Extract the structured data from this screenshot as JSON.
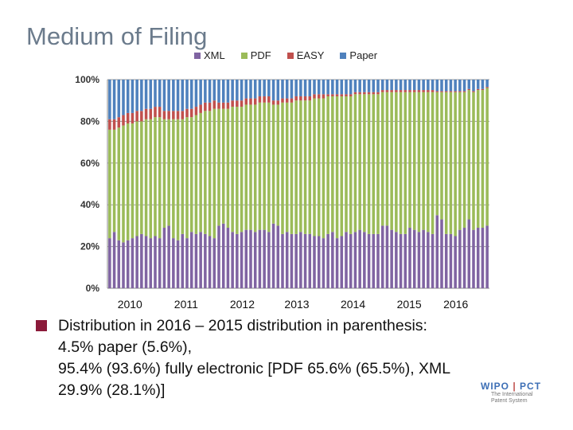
{
  "page": {
    "title": "Medium of Filing"
  },
  "legend": [
    {
      "label": "XML",
      "color": "#8064a2"
    },
    {
      "label": "PDF",
      "color": "#9bbb59"
    },
    {
      "label": "EASY",
      "color": "#c0504d"
    },
    {
      "label": "Paper",
      "color": "#4f81bd"
    }
  ],
  "chart_data": {
    "type": "bar",
    "stacked": true,
    "title": "Medium of Filing",
    "y_tick_labels": [
      "0%",
      "20%",
      "40%",
      "60%",
      "80%",
      "100%"
    ],
    "ylim": [
      0,
      100
    ],
    "year_labels": [
      "2010",
      "2011",
      "2012",
      "2013",
      "2014",
      "2015",
      "2016"
    ],
    "bars_per_year": 12,
    "series_order": [
      "XML",
      "PDF",
      "EASY",
      "Paper"
    ],
    "series": [
      {
        "name": "XML",
        "values": [
          24,
          27,
          23,
          22,
          23,
          24,
          25,
          26,
          25,
          24,
          25,
          24,
          29,
          30,
          24,
          23,
          26,
          24,
          27,
          26,
          27,
          26,
          25,
          24,
          30,
          31,
          29,
          27,
          26,
          27,
          28,
          28,
          27,
          28,
          28,
          27,
          31,
          30,
          26,
          27,
          26,
          26,
          27,
          26,
          26,
          25,
          25,
          24,
          26,
          27,
          24,
          25,
          27,
          26,
          27,
          28,
          27,
          26,
          26,
          26,
          30,
          30,
          28,
          27,
          26,
          26,
          29,
          28,
          27,
          28,
          27,
          26,
          35,
          33,
          26,
          26,
          25,
          28,
          29,
          33,
          28,
          29,
          29,
          30
        ]
      },
      {
        "name": "PDF",
        "values": [
          52,
          49,
          54,
          56,
          56,
          55,
          55,
          54,
          56,
          57,
          57,
          58,
          52,
          51,
          57,
          58,
          55,
          58,
          55,
          57,
          57,
          59,
          60,
          62,
          56,
          55,
          57,
          60,
          61,
          60,
          60,
          60,
          61,
          61,
          61,
          62,
          57,
          58,
          63,
          62,
          63,
          64,
          63,
          64,
          64,
          66,
          66,
          67,
          66,
          65,
          68,
          67,
          65,
          66,
          66,
          65,
          66,
          67,
          67,
          67,
          64,
          64,
          66,
          67,
          68,
          68,
          65,
          66,
          67,
          66,
          67,
          68,
          59,
          61,
          68,
          68,
          69,
          66,
          65,
          62,
          66,
          66,
          66,
          66
        ]
      },
      {
        "name": "EASY",
        "values": [
          5,
          5,
          5,
          5,
          5,
          5,
          5,
          5,
          5,
          5,
          5,
          5,
          4,
          4,
          4,
          4,
          4,
          4,
          4,
          4,
          4,
          4,
          4,
          4,
          3,
          3,
          3,
          3,
          3,
          3,
          3,
          3,
          3,
          3,
          3,
          3,
          2,
          2,
          2,
          2,
          2,
          2,
          2,
          2,
          2,
          2,
          2,
          2,
          1,
          1,
          1,
          1,
          1,
          1,
          1,
          1,
          1,
          1,
          1,
          1,
          1,
          1,
          1,
          1,
          1,
          1,
          1,
          1,
          1,
          1,
          1,
          1,
          0.5,
          0.5,
          0.5,
          0.5,
          0.5,
          0.5,
          0.5,
          0.5,
          0.5,
          0.5,
          0.5,
          0.5
        ]
      },
      {
        "name": "Paper",
        "values": [
          19,
          19,
          18,
          17,
          16,
          16,
          15,
          15,
          14,
          14,
          13,
          13,
          15,
          15,
          15,
          15,
          15,
          14,
          14,
          13,
          12,
          11,
          11,
          10,
          11,
          11,
          11,
          10,
          10,
          10,
          9,
          9,
          9,
          8,
          8,
          8,
          10,
          10,
          9,
          9,
          9,
          8,
          8,
          8,
          8,
          7,
          7,
          7,
          7,
          7,
          7,
          7,
          7,
          7,
          6,
          6,
          6,
          6,
          6,
          6,
          5,
          5,
          5,
          5,
          5,
          5,
          5,
          5,
          5,
          5,
          5,
          5,
          5.5,
          5.5,
          5.5,
          5.5,
          5.5,
          5.5,
          5.5,
          4.5,
          5.5,
          4.5,
          4.5,
          3.5
        ]
      }
    ]
  },
  "summary": {
    "line1": "Distribution in 2016 – 2015 distribution in parenthesis:",
    "line2": "4.5% paper (5.6%),",
    "line3": "95.4% (93.6%) fully electronic [PDF 65.6% (65.5%), XML",
    "line4": "29.9% (28.1%)]"
  },
  "logo": {
    "text_left": "WIPO",
    "text_right": "PCT",
    "subtitle1": "The International",
    "subtitle2": "Patent System"
  }
}
